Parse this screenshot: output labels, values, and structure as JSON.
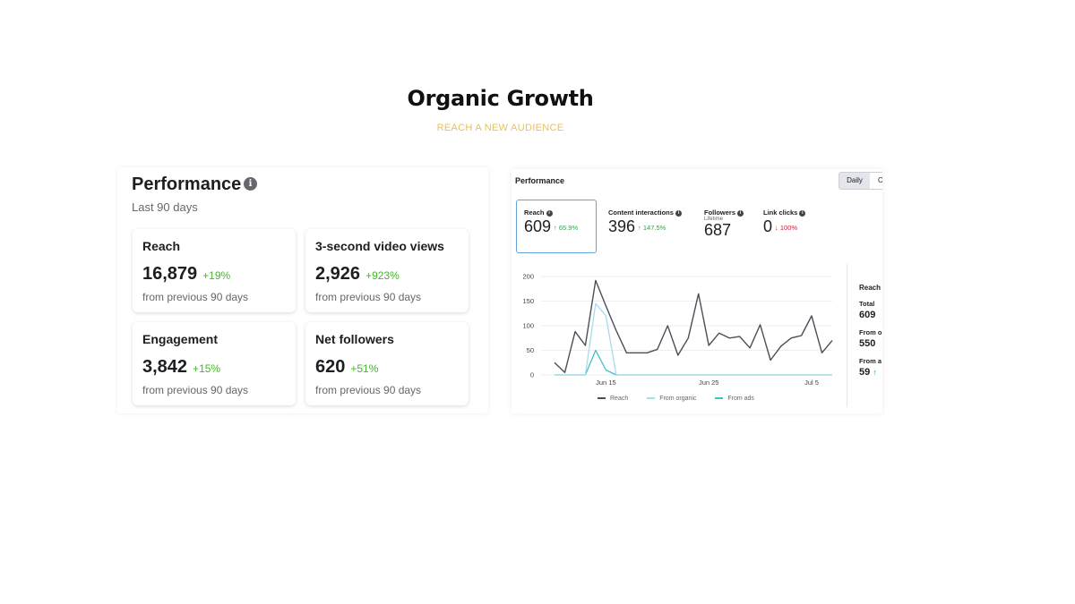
{
  "slide": {
    "title": "Organic Growth",
    "subtitle": "REACH A NEW AUDIENCE"
  },
  "left_panel": {
    "title": "Performance",
    "info_icon": "info-icon",
    "period": "Last 90 days",
    "cards": [
      {
        "label": "Reach",
        "value": "16,879",
        "change": "+19%",
        "note": "from previous 90 days"
      },
      {
        "label": "3-second video views",
        "value": "2,926",
        "change": "+923%",
        "note": "from previous 90 days"
      },
      {
        "label": "Engagement",
        "value": "3,842",
        "change": "+15%",
        "note": "from previous 90 days"
      },
      {
        "label": "Net followers",
        "value": "620",
        "change": "+51%",
        "note": "from previous 90 days"
      }
    ]
  },
  "right_panel": {
    "title": "Performance",
    "toggle": {
      "selected": "Daily",
      "other": "C"
    },
    "metrics": [
      {
        "label": "Reach",
        "value": "609",
        "change": "↑ 65.9%",
        "direction": "up",
        "selected": true
      },
      {
        "label": "Content interactions",
        "value": "396",
        "change": "↑ 147.5%",
        "direction": "up"
      },
      {
        "label": "Followers",
        "sub": "Lifetime",
        "value": "687"
      },
      {
        "label": "Link clicks",
        "value": "0",
        "change": "↓ 100%",
        "direction": "down"
      }
    ],
    "side": {
      "heading": "Reach",
      "items": [
        {
          "label": "Total",
          "value": "609"
        },
        {
          "label": "From o",
          "value": "550"
        },
        {
          "label": "From a",
          "value": "59",
          "arrow": "↑"
        }
      ]
    },
    "colors": {
      "reach": "#4b4f56",
      "organic": "#a8dbee",
      "ads": "#3ec1c9",
      "selected_border": "#63a4dd",
      "up": "#31a24c",
      "down": "#d1213b"
    }
  },
  "chart_data": {
    "type": "line",
    "ylim": [
      0,
      200
    ],
    "yticks": [
      0,
      50,
      100,
      150,
      200
    ],
    "x_tick_labels": [
      "Jun 15",
      "Jun 25",
      "Jul 5"
    ],
    "x_tick_indices": [
      5,
      15,
      25
    ],
    "grid": true,
    "legend_position": "bottom",
    "series": [
      {
        "name": "Reach",
        "values": [
          25,
          5,
          88,
          60,
          192,
          140,
          90,
          45,
          45,
          45,
          52,
          100,
          40,
          75,
          165,
          60,
          85,
          75,
          78,
          55,
          102,
          30,
          58,
          75,
          80,
          120,
          45,
          70
        ]
      },
      {
        "name": "From organic",
        "values": [
          0,
          0,
          0,
          0,
          145,
          120,
          0,
          0,
          0,
          0,
          0,
          0,
          0,
          0,
          0,
          0,
          0,
          0,
          0,
          0,
          0,
          0,
          0,
          0,
          0,
          0,
          0,
          0
        ]
      },
      {
        "name": "From ads",
        "values": [
          0,
          0,
          0,
          0,
          50,
          10,
          0,
          0,
          0,
          0,
          0,
          0,
          0,
          0,
          0,
          0,
          0,
          0,
          0,
          0,
          0,
          0,
          0,
          0,
          0,
          0,
          0,
          0
        ]
      }
    ]
  }
}
